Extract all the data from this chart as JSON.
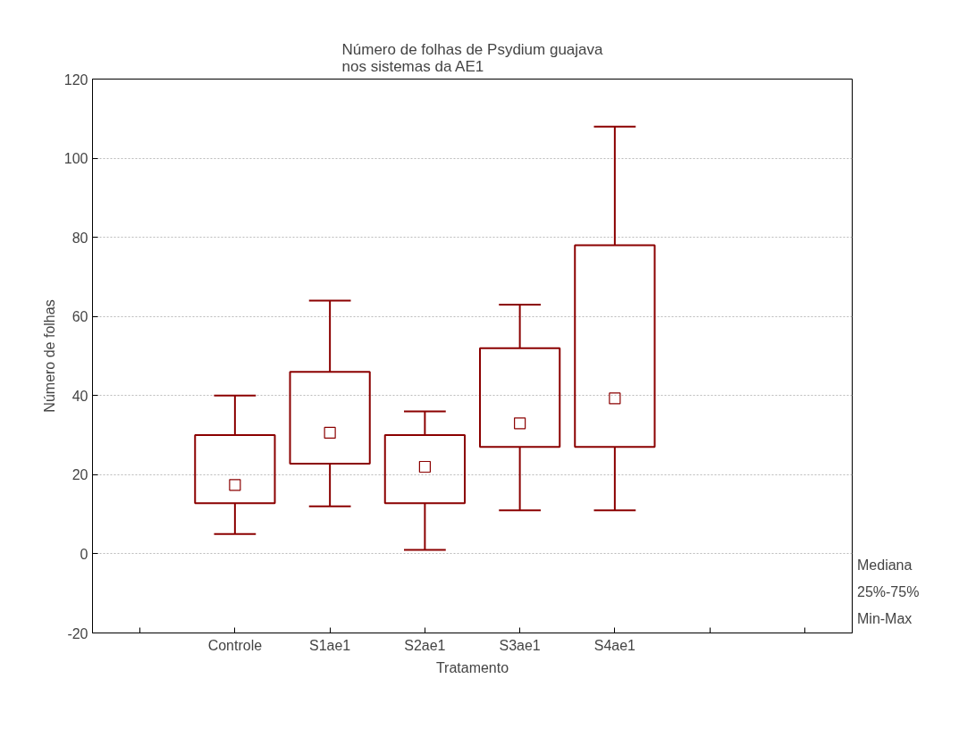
{
  "chart_data": {
    "type": "box",
    "title": "Número de folhas de Psydium guajava\nnos sistemas da AE1",
    "xlabel": "Tratamento",
    "ylabel": "Número de folhas",
    "categories": [
      null,
      "Controle",
      "S1ae1",
      "S2ae1",
      "S3ae1",
      "S4ae1",
      null,
      null
    ],
    "boxes": [
      null,
      {
        "low": 5,
        "q1": 12.8,
        "median": 17.4,
        "q3": 30,
        "high": 40
      },
      {
        "low": 12,
        "q1": 22.8,
        "median": 30.6,
        "q3": 46,
        "high": 64
      },
      {
        "low": 1,
        "q1": 12.8,
        "median": 22,
        "q3": 30,
        "high": 36
      },
      {
        "low": 11,
        "q1": 27,
        "median": 33,
        "q3": 52,
        "high": 63
      },
      {
        "low": 11,
        "q1": 27,
        "median": 39.3,
        "q3": 78,
        "high": 108
      },
      null,
      null
    ],
    "color": "#8b0000",
    "ylim": [
      -20,
      120
    ],
    "yticks": [
      -20,
      0,
      20,
      40,
      60,
      80,
      100,
      120
    ],
    "grid": "y",
    "marker": "square",
    "annotations": [
      "Mediana",
      "25%-75%",
      "Min-Max"
    ]
  }
}
